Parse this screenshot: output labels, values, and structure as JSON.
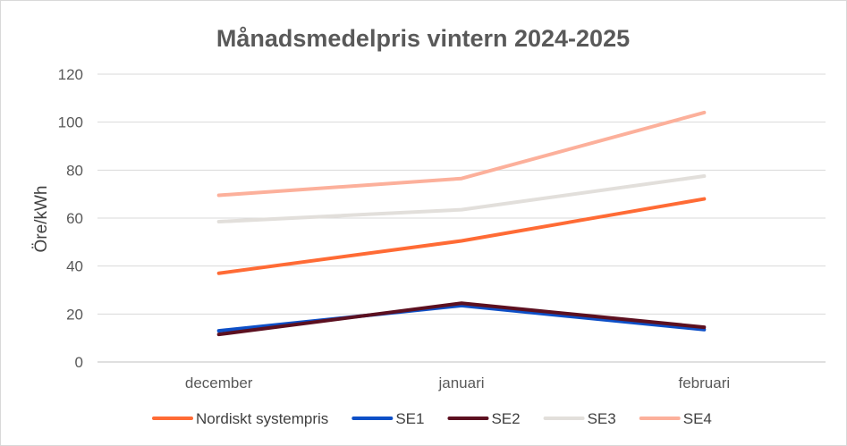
{
  "chart_data": {
    "type": "line",
    "title": "Månadsmedelpris vintern 2024-2025",
    "xlabel": "",
    "ylabel": "Öre/kWh",
    "ylim": [
      0,
      120
    ],
    "yticks": [
      0,
      20,
      40,
      60,
      80,
      100,
      120
    ],
    "grid": true,
    "legend_position": "bottom",
    "categories": [
      "december",
      "januari",
      "februari"
    ],
    "series": [
      {
        "name": "Nordiskt systempris",
        "color": "#ff6b35",
        "values": [
          37,
          50.5,
          68
        ]
      },
      {
        "name": "SE1",
        "color": "#0d4fc7",
        "values": [
          13,
          23.5,
          13.5
        ]
      },
      {
        "name": "SE2",
        "color": "#5c1020",
        "values": [
          11.5,
          24.5,
          14.5
        ]
      },
      {
        "name": "SE3",
        "color": "#e2dfdb",
        "values": [
          58.5,
          63.5,
          77.5
        ]
      },
      {
        "name": "SE4",
        "color": "#fcb09b",
        "values": [
          69.5,
          76.5,
          104
        ]
      }
    ]
  }
}
